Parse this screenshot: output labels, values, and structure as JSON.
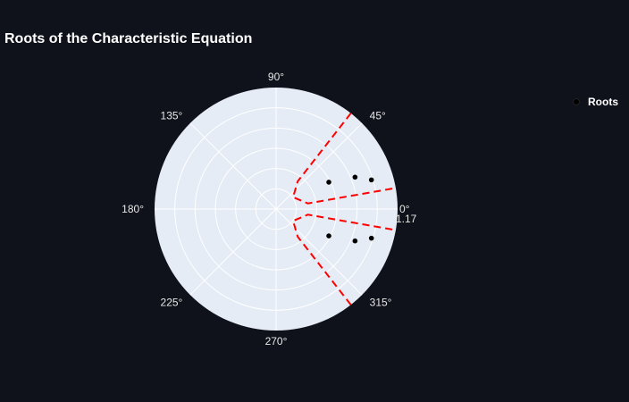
{
  "chart_data": {
    "type": "scatter-polar",
    "title": "Roots of the Characteristic Equation",
    "angular_axis": {
      "tick_values_deg": [
        0,
        45,
        90,
        135,
        180,
        225,
        270,
        315
      ],
      "tick_labels": [
        "0°",
        "45°",
        "90°",
        "135°",
        "180°",
        "225°",
        "270°",
        "315°"
      ],
      "direction": "counterclockwise",
      "rotation_deg": 0
    },
    "radial_axis": {
      "range": [
        0,
        1.17
      ],
      "ring_count": 6,
      "visible_tick_label": "1.17",
      "grid": true
    },
    "series": [
      {
        "name": "Roots",
        "mode": "markers",
        "color": "#000000",
        "points": [
          {
            "r": 0.82,
            "theta_deg": 22
          },
          {
            "r": 0.96,
            "theta_deg": 17
          },
          {
            "r": 0.57,
            "theta_deg": 27
          },
          {
            "r": 0.82,
            "theta_deg": -22
          },
          {
            "r": 0.96,
            "theta_deg": -17
          },
          {
            "r": 0.57,
            "theta_deg": -27
          }
        ]
      },
      {
        "name": "",
        "mode": "lines",
        "dash": "dashed",
        "color": "#ff0000",
        "show_in_legend": false,
        "points": [
          {
            "r": 1.17,
            "theta_deg": 52
          },
          {
            "r": 0.34,
            "theta_deg": 52
          },
          {
            "r": 0.2,
            "theta_deg": 35
          },
          {
            "r": 0.31,
            "theta_deg": 10
          },
          {
            "r": 1.17,
            "theta_deg": 10
          }
        ]
      },
      {
        "name": "",
        "mode": "lines",
        "dash": "dashed",
        "color": "#ff0000",
        "show_in_legend": false,
        "points": [
          {
            "r": 1.17,
            "theta_deg": -52
          },
          {
            "r": 0.34,
            "theta_deg": -52
          },
          {
            "r": 0.2,
            "theta_deg": -35
          },
          {
            "r": 0.31,
            "theta_deg": -10
          },
          {
            "r": 1.17,
            "theta_deg": -10
          }
        ]
      }
    ],
    "legend": {
      "placement": "top-right",
      "entries": [
        "Roots"
      ]
    },
    "colors": {
      "background": "#0f121a",
      "polar_bg": "#e5ecf6",
      "grid": "#ffffff",
      "text": "#ffffff"
    }
  }
}
